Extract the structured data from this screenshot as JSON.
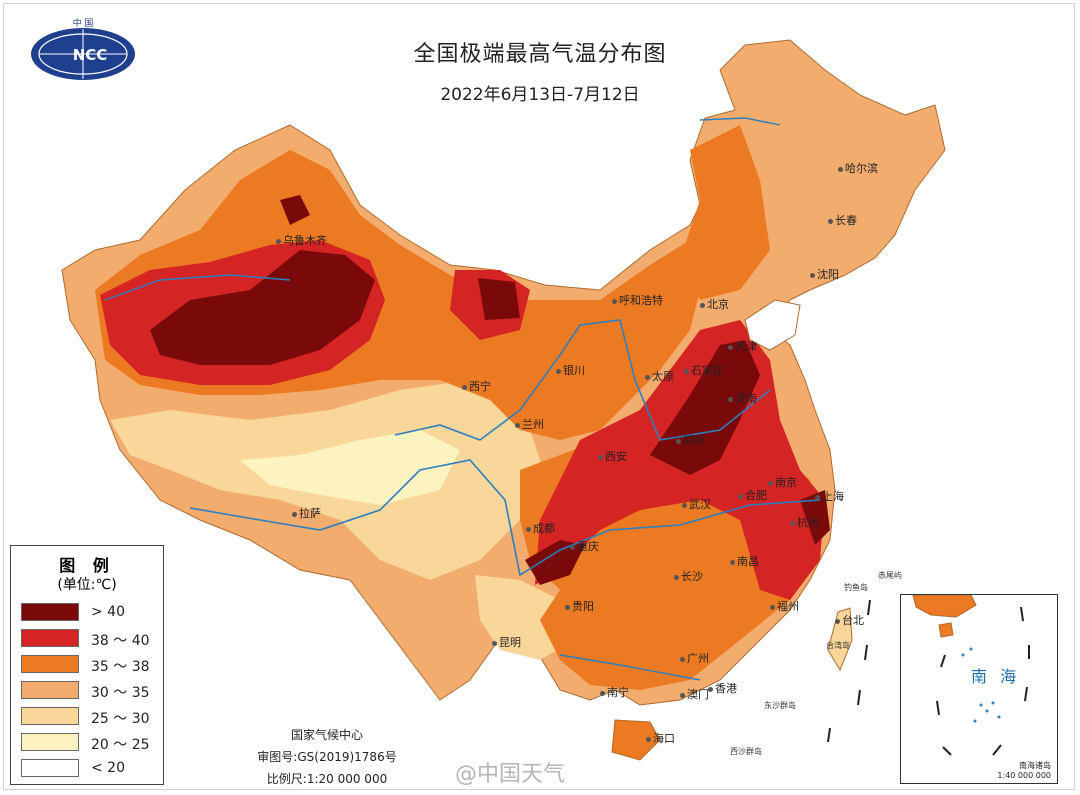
{
  "title": "全国极端最高气温分布图",
  "date_range": "2022年6月13日-7月12日",
  "logo": {
    "top_text": "中 国",
    "brand_text": "NCC"
  },
  "legend": {
    "title": "图 例",
    "unit": "(单位:℃)",
    "items": [
      {
        "label": "> 40",
        "color": "#7a0a0a"
      },
      {
        "label": "38 ～ 40",
        "color": "#d42424"
      },
      {
        "label": "35 ～ 38",
        "color": "#ec7a22"
      },
      {
        "label": "30 ～ 35",
        "color": "#f2ac6e"
      },
      {
        "label": "25 ～ 30",
        "color": "#f9d79a"
      },
      {
        "label": "20 ～ 25",
        "color": "#fcf3c0"
      },
      {
        "label": "< 20",
        "color": "#ffffff"
      }
    ]
  },
  "cities": [
    {
      "id": "urumqi",
      "name": "乌鲁木齐"
    },
    {
      "id": "harbin",
      "name": "哈尔滨"
    },
    {
      "id": "changchun",
      "name": "长春"
    },
    {
      "id": "shenyang",
      "name": "沈阳"
    },
    {
      "id": "hohhot",
      "name": "呼和浩特"
    },
    {
      "id": "beijing",
      "name": "北京"
    },
    {
      "id": "tianjin",
      "name": "天津"
    },
    {
      "id": "yinchuan",
      "name": "银川"
    },
    {
      "id": "taiyuan",
      "name": "太原"
    },
    {
      "id": "shijiazhuang",
      "name": "石家庄"
    },
    {
      "id": "jinan",
      "name": "济南"
    },
    {
      "id": "xining",
      "name": "西宁"
    },
    {
      "id": "lanzhou",
      "name": "兰州"
    },
    {
      "id": "xian",
      "name": "西安"
    },
    {
      "id": "zhengzhou",
      "name": "郑州"
    },
    {
      "id": "nanjing",
      "name": "南京"
    },
    {
      "id": "hefei",
      "name": "合肥"
    },
    {
      "id": "shanghai",
      "name": "上海"
    },
    {
      "id": "hangzhou",
      "name": "杭州"
    },
    {
      "id": "wuhan",
      "name": "武汉"
    },
    {
      "id": "chengdu",
      "name": "成都"
    },
    {
      "id": "chongqing",
      "name": "重庆"
    },
    {
      "id": "lhasa",
      "name": "拉萨"
    },
    {
      "id": "changsha",
      "name": "长沙"
    },
    {
      "id": "nanchang",
      "name": "南昌"
    },
    {
      "id": "fuzhou",
      "name": "福州"
    },
    {
      "id": "taibei",
      "name": "台北"
    },
    {
      "id": "guiyang",
      "name": "贵阳"
    },
    {
      "id": "kunming",
      "name": "昆明"
    },
    {
      "id": "nanning",
      "name": "南宁"
    },
    {
      "id": "guangzhou",
      "name": "广州"
    },
    {
      "id": "macau",
      "name": "澳门"
    },
    {
      "id": "hongkong",
      "name": "香港"
    },
    {
      "id": "haikou",
      "name": "海口"
    }
  ],
  "islands": {
    "diaoyu": "钓鱼岛",
    "chiwei": "赤尾屿",
    "taiwan": "台湾岛",
    "dongsha": "东沙群岛",
    "xisha": "西沙群岛"
  },
  "inset": {
    "label": "南 海",
    "caption_line1": "南海诸岛",
    "caption_line2": "1:40 000 000"
  },
  "footer": {
    "agency": "国家气候中心",
    "review_no": "审图号:GS(2019)1786号",
    "scale": "比例尺:1:20 000 000"
  },
  "watermark": "@中国天气"
}
